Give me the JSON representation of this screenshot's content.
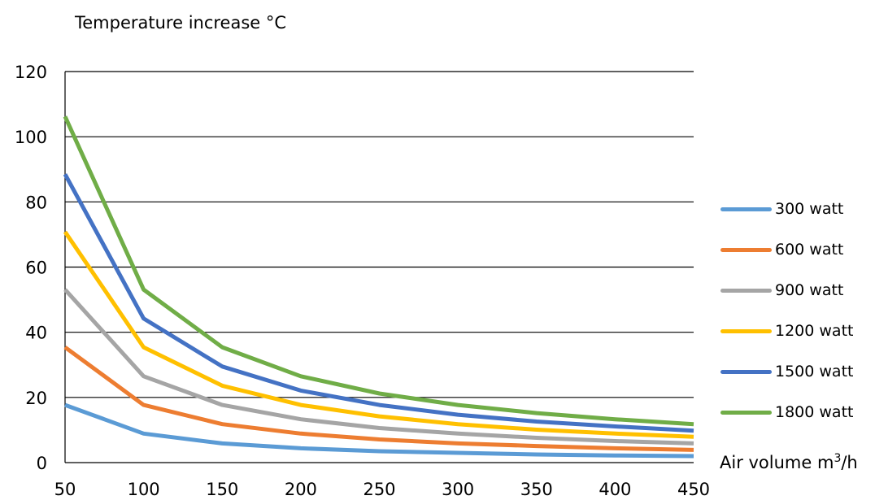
{
  "chart_data": {
    "type": "line",
    "ylabel": "Temperature increase °C",
    "xlabel": "Air volume m",
    "xlabel_sup": "3",
    "xlabel_tail": "/h",
    "x": [
      50,
      100,
      150,
      200,
      250,
      300,
      350,
      400,
      450
    ],
    "xlim": [
      50,
      450
    ],
    "ylim": [
      0,
      120
    ],
    "yticks": [
      0,
      20,
      40,
      60,
      80,
      100,
      120
    ],
    "xticks": [
      50,
      100,
      150,
      200,
      250,
      300,
      350,
      400,
      450
    ],
    "grid": true,
    "legend_position": "right",
    "series": [
      {
        "name": "300 watt",
        "color": "#5B9BD5",
        "values": [
          17.7,
          8.9,
          5.9,
          4.4,
          3.5,
          3.0,
          2.5,
          2.2,
          2.0
        ]
      },
      {
        "name": "600 watt",
        "color": "#ED7D31",
        "values": [
          35.4,
          17.7,
          11.8,
          8.9,
          7.1,
          5.9,
          5.1,
          4.4,
          3.9
        ]
      },
      {
        "name": "900 watt",
        "color": "#A5A5A5",
        "values": [
          53.1,
          26.5,
          17.7,
          13.3,
          10.6,
          8.9,
          7.6,
          6.6,
          5.9
        ]
      },
      {
        "name": "1200 watt",
        "color": "#FFC000",
        "values": [
          70.8,
          35.4,
          23.6,
          17.7,
          14.2,
          11.8,
          10.1,
          8.9,
          7.9
        ]
      },
      {
        "name": "1500 watt",
        "color": "#4472C4",
        "values": [
          88.5,
          44.2,
          29.5,
          22.1,
          17.7,
          14.7,
          12.6,
          11.1,
          9.8
        ]
      },
      {
        "name": "1800 watt",
        "color": "#70AD47",
        "values": [
          106.2,
          53.1,
          35.4,
          26.5,
          21.2,
          17.7,
          15.2,
          13.3,
          11.8
        ]
      }
    ]
  }
}
